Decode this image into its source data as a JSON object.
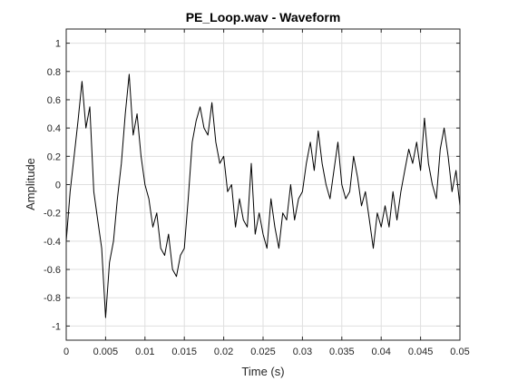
{
  "chart_data": {
    "type": "line",
    "title": "PE_Loop.wav - Waveform",
    "xlabel": "Time (s)",
    "ylabel": "Amplitude",
    "xlim": [
      0,
      0.05
    ],
    "ylim": [
      -1.1,
      1.1
    ],
    "grid": true,
    "x_ticks": [
      0,
      0.005,
      0.01,
      0.015,
      0.02,
      0.025,
      0.03,
      0.035,
      0.04,
      0.045,
      0.05
    ],
    "x_tick_labels": [
      "0",
      "0.005",
      "0.01",
      "0.015",
      "0.02",
      "0.025",
      "0.03",
      "0.035",
      "0.04",
      "0.045",
      "0.05"
    ],
    "y_ticks": [
      -1,
      -0.8,
      -0.6,
      -0.4,
      -0.2,
      0,
      0.2,
      0.4,
      0.6,
      0.8,
      1
    ],
    "y_tick_labels": [
      "-1",
      "-0.8",
      "-0.6",
      "-0.4",
      "-0.2",
      "0",
      "0.2",
      "0.4",
      "0.6",
      "0.8",
      "1"
    ],
    "series": [
      {
        "color": "#000000",
        "x": [
          0,
          0.0005,
          0.001,
          0.0015,
          0.002,
          0.0025,
          0.003,
          0.0035,
          0.004,
          0.0045,
          0.005,
          0.0055,
          0.006,
          0.0065,
          0.007,
          0.0075,
          0.008,
          0.0085,
          0.009,
          0.0095,
          0.01,
          0.0105,
          0.011,
          0.0115,
          0.012,
          0.0125,
          0.013,
          0.0135,
          0.014,
          0.0145,
          0.015,
          0.0155,
          0.016,
          0.0165,
          0.017,
          0.0175,
          0.018,
          0.0185,
          0.019,
          0.0195,
          0.02,
          0.0205,
          0.021,
          0.0215,
          0.022,
          0.0225,
          0.023,
          0.0235,
          0.024,
          0.0245,
          0.025,
          0.0255,
          0.026,
          0.0265,
          0.027,
          0.0275,
          0.028,
          0.0285,
          0.029,
          0.0295,
          0.03,
          0.0305,
          0.031,
          0.0315,
          0.032,
          0.0325,
          0.033,
          0.0335,
          0.034,
          0.0345,
          0.035,
          0.0355,
          0.036,
          0.0365,
          0.037,
          0.0375,
          0.038,
          0.0385,
          0.039,
          0.0395,
          0.04,
          0.0405,
          0.041,
          0.0415,
          0.042,
          0.0425,
          0.043,
          0.0435,
          0.044,
          0.0445,
          0.045,
          0.0455,
          0.046,
          0.0465,
          0.047,
          0.0475,
          0.048,
          0.0485,
          0.049,
          0.0495,
          0.05
        ],
        "values": [
          -0.4,
          -0.05,
          0.2,
          0.45,
          0.73,
          0.4,
          0.55,
          -0.05,
          -0.25,
          -0.45,
          -0.94,
          -0.55,
          -0.4,
          -0.1,
          0.15,
          0.5,
          0.78,
          0.35,
          0.5,
          0.2,
          0.0,
          -0.1,
          -0.3,
          -0.2,
          -0.45,
          -0.5,
          -0.35,
          -0.6,
          -0.65,
          -0.5,
          -0.45,
          -0.1,
          0.3,
          0.45,
          0.55,
          0.4,
          0.35,
          0.58,
          0.3,
          0.15,
          0.2,
          -0.05,
          0.0,
          -0.3,
          -0.1,
          -0.25,
          -0.3,
          0.15,
          -0.35,
          -0.2,
          -0.35,
          -0.45,
          -0.1,
          -0.3,
          -0.45,
          -0.2,
          -0.25,
          0.0,
          -0.25,
          -0.1,
          -0.05,
          0.15,
          0.3,
          0.1,
          0.38,
          0.15,
          0.0,
          -0.1,
          0.1,
          0.3,
          0.0,
          -0.1,
          -0.05,
          0.2,
          0.05,
          -0.15,
          -0.05,
          -0.25,
          -0.45,
          -0.2,
          -0.3,
          -0.15,
          -0.3,
          -0.05,
          -0.25,
          -0.05,
          0.1,
          0.25,
          0.15,
          0.3,
          0.1,
          0.47,
          0.15,
          0.0,
          -0.1,
          0.25,
          0.4,
          0.2,
          -0.05,
          0.1,
          -0.15
        ]
      }
    ]
  }
}
